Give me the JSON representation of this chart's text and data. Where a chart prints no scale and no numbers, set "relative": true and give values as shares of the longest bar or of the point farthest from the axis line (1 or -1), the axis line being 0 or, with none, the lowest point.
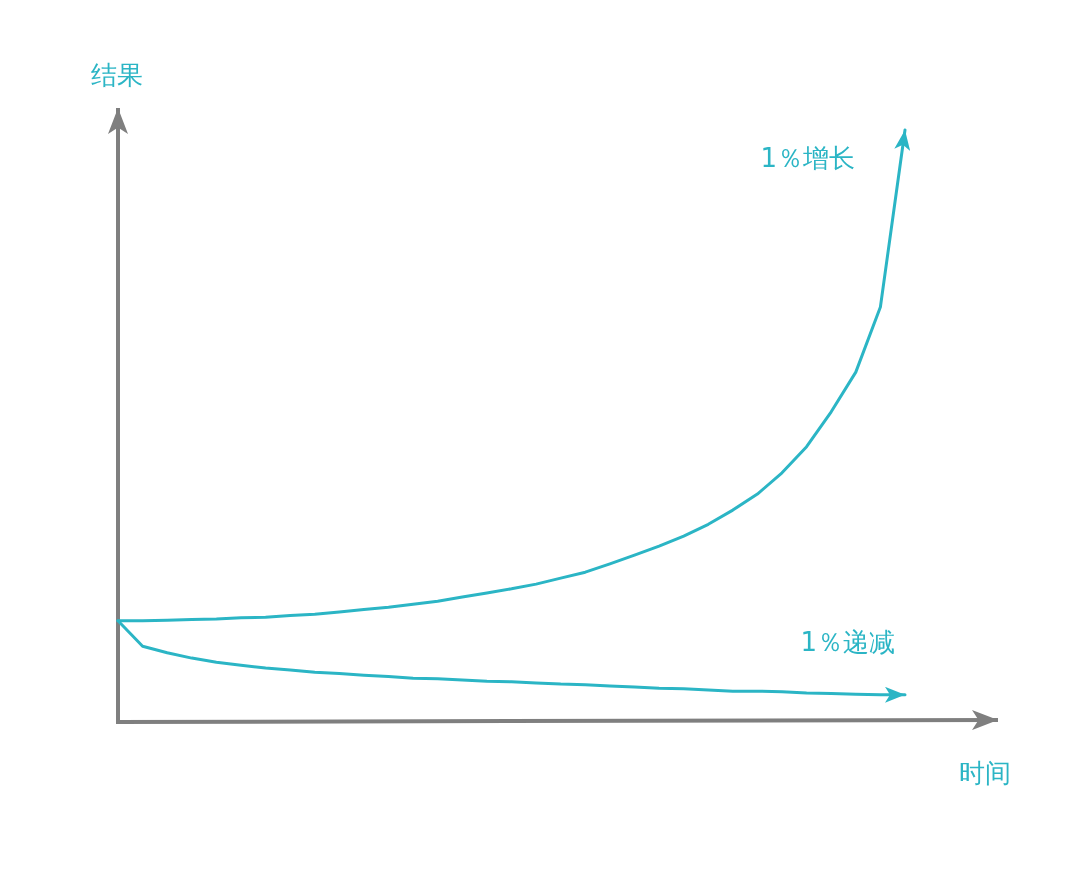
{
  "chart_data": {
    "type": "line",
    "relative": true,
    "xlabel": "时间",
    "ylabel": "结果",
    "categories": [
      null,
      null,
      null,
      null,
      null,
      null,
      null,
      null,
      null,
      null,
      null,
      null,
      null,
      null,
      null,
      null,
      null,
      null,
      null,
      null,
      null,
      null,
      null,
      null,
      null,
      null,
      null,
      null,
      null,
      null,
      null,
      null,
      null
    ],
    "series": [
      {
        "name": "1％增长",
        "color": "#2bb5c5",
        "values": [
          0.171,
          0.171,
          0.172,
          0.173,
          0.174,
          0.176,
          0.177,
          0.18,
          0.182,
          0.186,
          0.19,
          0.194,
          0.199,
          0.204,
          0.211,
          0.218,
          0.225,
          0.233,
          0.243,
          0.253,
          0.267,
          0.282,
          0.297,
          0.314,
          0.334,
          0.358,
          0.385,
          0.421,
          0.465,
          0.524,
          0.591,
          0.701,
          1
        ]
      },
      {
        "name": "1％递减",
        "color": "#2bb5c5",
        "values": [
          0.171,
          0.128,
          0.117,
          0.108,
          0.101,
          0.096,
          0.091,
          0.088,
          0.084,
          0.082,
          0.079,
          0.077,
          0.074,
          0.073,
          0.071,
          0.069,
          0.068,
          0.066,
          0.064,
          0.063,
          0.061,
          0.059,
          0.057,
          0.056,
          0.054,
          0.052,
          0.052,
          0.051,
          0.049,
          0.048,
          0.047,
          0.046,
          0.046
        ]
      }
    ]
  }
}
